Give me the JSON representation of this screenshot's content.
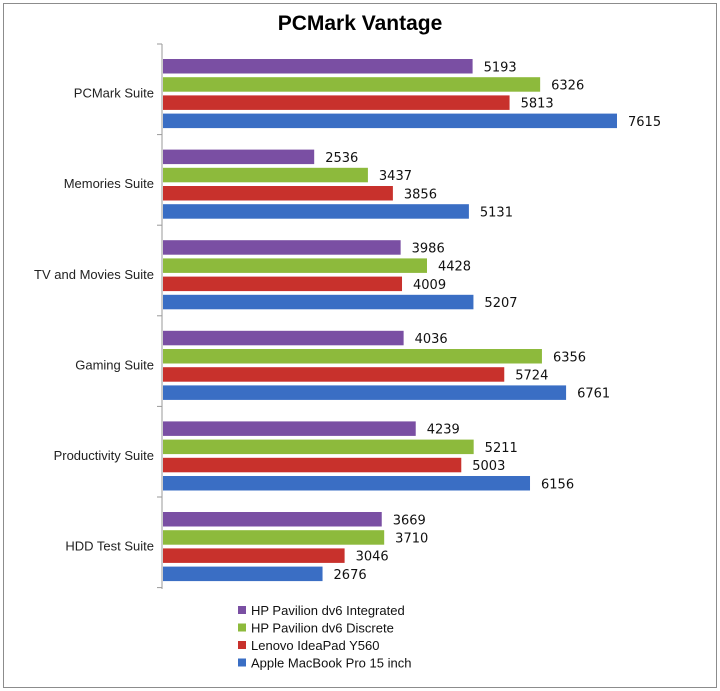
{
  "chart_data": {
    "type": "bar",
    "orientation": "horizontal",
    "title": "PCMark Vantage",
    "xlabel": "",
    "ylabel": "",
    "xlim": [
      0,
      8000
    ],
    "grid": false,
    "legend_position": "bottom",
    "categories": [
      "PCMark Suite",
      "Memories Suite",
      "TV and Movies Suite",
      "Gaming Suite",
      "Productivity Suite",
      "HDD Test Suite"
    ],
    "series": [
      {
        "name": "HP Pavilion dv6 Integrated",
        "color": "#7a4fa3",
        "values": [
          5193,
          2536,
          3986,
          4036,
          4239,
          3669
        ]
      },
      {
        "name": "HP Pavilion dv6 Discrete",
        "color": "#8dba3c",
        "values": [
          6326,
          3437,
          4428,
          6356,
          5211,
          3710
        ]
      },
      {
        "name": "Lenovo IdeaPad Y560",
        "color": "#c8312c",
        "values": [
          5813,
          3856,
          4009,
          5724,
          5003,
          3046
        ]
      },
      {
        "name": "Apple MacBook Pro 15 inch",
        "color": "#3a6ec4",
        "values": [
          7615,
          5131,
          5207,
          6761,
          6156,
          2676
        ]
      }
    ]
  }
}
